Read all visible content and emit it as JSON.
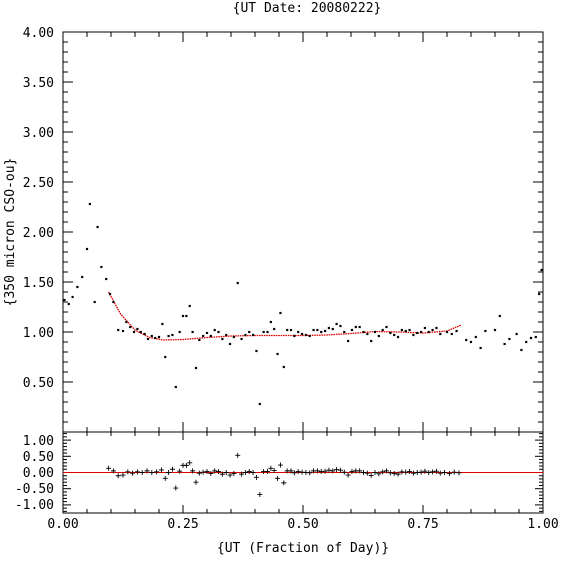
{
  "chart_data": {
    "type": "scatter",
    "title": "{UT Date: 20080222}",
    "xlabel": "{UT (Fraction of Day)}",
    "ylabel": "{350 micron CSO-ou}",
    "xlim": [
      0.0,
      1.0
    ],
    "x_ticks": [
      "0.00",
      "0.25",
      "0.50",
      "0.75",
      "1.00"
    ],
    "colors": {
      "data": "#000000",
      "fit": "#e00000",
      "zero_line": "#e00000"
    },
    "main_panel": {
      "ylim": [
        0.0,
        4.0
      ],
      "y_ticks": [
        "0.50",
        "1.00",
        "1.50",
        "2.00",
        "2.50",
        "3.00",
        "3.50",
        "4.00"
      ],
      "points": [
        [
          0.003,
          1.32
        ],
        [
          0.012,
          1.28
        ],
        [
          0.02,
          1.35
        ],
        [
          0.03,
          1.45
        ],
        [
          0.04,
          1.55
        ],
        [
          0.05,
          1.83
        ],
        [
          0.056,
          2.28
        ],
        [
          0.066,
          1.3
        ],
        [
          0.072,
          2.05
        ],
        [
          0.08,
          1.65
        ],
        [
          0.09,
          1.53
        ],
        [
          0.098,
          1.38
        ],
        [
          0.105,
          1.3
        ],
        [
          0.115,
          1.02
        ],
        [
          0.125,
          1.01
        ],
        [
          0.132,
          1.1
        ],
        [
          0.14,
          1.05
        ],
        [
          0.148,
          1.0
        ],
        [
          0.155,
          1.03
        ],
        [
          0.162,
          1.0
        ],
        [
          0.17,
          0.98
        ],
        [
          0.177,
          0.93
        ],
        [
          0.185,
          0.96
        ],
        [
          0.192,
          0.94
        ],
        [
          0.2,
          0.95
        ],
        [
          0.207,
          1.08
        ],
        [
          0.213,
          0.75
        ],
        [
          0.22,
          0.96
        ],
        [
          0.228,
          0.97
        ],
        [
          0.235,
          0.45
        ],
        [
          0.243,
          1.0
        ],
        [
          0.25,
          1.16
        ],
        [
          0.257,
          1.16
        ],
        [
          0.264,
          1.26
        ],
        [
          0.27,
          1.0
        ],
        [
          0.277,
          0.64
        ],
        [
          0.284,
          0.92
        ],
        [
          0.292,
          0.96
        ],
        [
          0.3,
          0.99
        ],
        [
          0.308,
          0.96
        ],
        [
          0.316,
          1.02
        ],
        [
          0.324,
          1.0
        ],
        [
          0.332,
          0.93
        ],
        [
          0.34,
          0.97
        ],
        [
          0.348,
          0.88
        ],
        [
          0.356,
          0.95
        ],
        [
          0.364,
          1.49
        ],
        [
          0.372,
          0.93
        ],
        [
          0.38,
          0.97
        ],
        [
          0.388,
          1.0
        ],
        [
          0.396,
          0.97
        ],
        [
          0.403,
          0.81
        ],
        [
          0.41,
          0.28
        ],
        [
          0.418,
          1.0
        ],
        [
          0.426,
          1.0
        ],
        [
          0.433,
          1.1
        ],
        [
          0.44,
          1.03
        ],
        [
          0.447,
          0.78
        ],
        [
          0.453,
          1.19
        ],
        [
          0.46,
          0.65
        ],
        [
          0.467,
          1.02
        ],
        [
          0.475,
          1.02
        ],
        [
          0.482,
          0.96
        ],
        [
          0.49,
          1.0
        ],
        [
          0.498,
          0.98
        ],
        [
          0.506,
          0.97
        ],
        [
          0.514,
          0.96
        ],
        [
          0.522,
          1.02
        ],
        [
          0.53,
          1.02
        ],
        [
          0.538,
          1.0
        ],
        [
          0.546,
          1.01
        ],
        [
          0.554,
          1.04
        ],
        [
          0.562,
          1.03
        ],
        [
          0.57,
          1.08
        ],
        [
          0.578,
          1.06
        ],
        [
          0.586,
          1.0
        ],
        [
          0.594,
          0.91
        ],
        [
          0.602,
          1.02
        ],
        [
          0.61,
          1.05
        ],
        [
          0.618,
          1.05
        ],
        [
          0.626,
          1.0
        ],
        [
          0.634,
          0.98
        ],
        [
          0.642,
          0.91
        ],
        [
          0.65,
          1.0
        ],
        [
          0.658,
          0.96
        ],
        [
          0.666,
          1.02
        ],
        [
          0.674,
          1.05
        ],
        [
          0.682,
          0.99
        ],
        [
          0.69,
          0.97
        ],
        [
          0.698,
          0.95
        ],
        [
          0.706,
          1.02
        ],
        [
          0.714,
          1.01
        ],
        [
          0.722,
          1.02
        ],
        [
          0.73,
          0.97
        ],
        [
          0.738,
          0.99
        ],
        [
          0.746,
          1.0
        ],
        [
          0.754,
          1.04
        ],
        [
          0.762,
          1.0
        ],
        [
          0.77,
          1.02
        ],
        [
          0.778,
          1.04
        ],
        [
          0.786,
          0.98
        ],
        [
          0.8,
          1.0
        ],
        [
          0.81,
          0.98
        ],
        [
          0.82,
          1.01
        ],
        [
          0.84,
          0.92
        ],
        [
          0.85,
          0.9
        ],
        [
          0.86,
          0.95
        ],
        [
          0.87,
          0.84
        ],
        [
          0.88,
          1.01
        ],
        [
          0.9,
          1.02
        ],
        [
          0.91,
          1.16
        ],
        [
          0.92,
          0.88
        ],
        [
          0.93,
          0.93
        ],
        [
          0.945,
          0.98
        ],
        [
          0.955,
          0.82
        ],
        [
          0.965,
          0.9
        ],
        [
          0.975,
          0.94
        ],
        [
          0.985,
          0.95
        ],
        [
          0.992,
          1.38
        ],
        [
          0.997,
          1.62
        ]
      ],
      "fit_curve": [
        [
          0.095,
          1.4
        ],
        [
          0.12,
          1.18
        ],
        [
          0.15,
          1.02
        ],
        [
          0.18,
          0.945
        ],
        [
          0.21,
          0.92
        ],
        [
          0.25,
          0.925
        ],
        [
          0.3,
          0.945
        ],
        [
          0.35,
          0.96
        ],
        [
          0.4,
          0.965
        ],
        [
          0.45,
          0.965
        ],
        [
          0.5,
          0.965
        ],
        [
          0.55,
          0.97
        ],
        [
          0.6,
          0.985
        ],
        [
          0.65,
          1.005
        ],
        [
          0.7,
          1.0
        ],
        [
          0.75,
          0.99
        ],
        [
          0.8,
          1.01
        ],
        [
          0.83,
          1.07
        ]
      ]
    },
    "residual_panel": {
      "ylim": [
        -1.25,
        1.25
      ],
      "y_ticks": [
        "-1.00",
        "-0.50",
        "0.00",
        "0.50",
        "1.00"
      ],
      "points": [
        [
          0.095,
          0.13
        ],
        [
          0.105,
          0.05
        ],
        [
          0.115,
          -0.1
        ],
        [
          0.125,
          -0.08
        ],
        [
          0.135,
          0.02
        ],
        [
          0.145,
          -0.02
        ],
        [
          0.155,
          0.02
        ],
        [
          0.165,
          0.0
        ],
        [
          0.175,
          0.05
        ],
        [
          0.185,
          0.0
        ],
        [
          0.195,
          0.02
        ],
        [
          0.205,
          0.08
        ],
        [
          0.213,
          -0.18
        ],
        [
          0.22,
          0.0
        ],
        [
          0.228,
          0.1
        ],
        [
          0.235,
          -0.48
        ],
        [
          0.243,
          0.04
        ],
        [
          0.25,
          0.22
        ],
        [
          0.257,
          0.22
        ],
        [
          0.264,
          0.3
        ],
        [
          0.27,
          0.05
        ],
        [
          0.277,
          -0.3
        ],
        [
          0.284,
          -0.02
        ],
        [
          0.292,
          0.01
        ],
        [
          0.3,
          0.03
        ],
        [
          0.308,
          -0.03
        ],
        [
          0.316,
          0.05
        ],
        [
          0.324,
          0.03
        ],
        [
          0.332,
          -0.05
        ],
        [
          0.34,
          0.0
        ],
        [
          0.348,
          -0.08
        ],
        [
          0.356,
          -0.03
        ],
        [
          0.364,
          0.53
        ],
        [
          0.372,
          -0.05
        ],
        [
          0.38,
          0.0
        ],
        [
          0.388,
          0.03
        ],
        [
          0.396,
          0.0
        ],
        [
          0.403,
          -0.15
        ],
        [
          0.41,
          -0.68
        ],
        [
          0.418,
          0.03
        ],
        [
          0.426,
          0.03
        ],
        [
          0.433,
          0.13
        ],
        [
          0.44,
          0.06
        ],
        [
          0.447,
          -0.18
        ],
        [
          0.453,
          0.23
        ],
        [
          0.46,
          -0.32
        ],
        [
          0.467,
          0.05
        ],
        [
          0.475,
          0.05
        ],
        [
          0.482,
          -0.01
        ],
        [
          0.49,
          0.03
        ],
        [
          0.498,
          0.01
        ],
        [
          0.506,
          0.0
        ],
        [
          0.514,
          -0.01
        ],
        [
          0.522,
          0.05
        ],
        [
          0.53,
          0.05
        ],
        [
          0.538,
          0.03
        ],
        [
          0.546,
          0.04
        ],
        [
          0.554,
          0.07
        ],
        [
          0.562,
          0.05
        ],
        [
          0.57,
          0.09
        ],
        [
          0.578,
          0.07
        ],
        [
          0.586,
          0.01
        ],
        [
          0.594,
          -0.08
        ],
        [
          0.602,
          0.03
        ],
        [
          0.61,
          0.05
        ],
        [
          0.618,
          0.05
        ],
        [
          0.626,
          0.0
        ],
        [
          0.634,
          -0.02
        ],
        [
          0.642,
          -0.09
        ],
        [
          0.65,
          0.0
        ],
        [
          0.658,
          -0.04
        ],
        [
          0.666,
          0.02
        ],
        [
          0.674,
          0.05
        ],
        [
          0.682,
          -0.01
        ],
        [
          0.69,
          -0.03
        ],
        [
          0.698,
          -0.05
        ],
        [
          0.706,
          0.02
        ],
        [
          0.714,
          0.01
        ],
        [
          0.722,
          0.03
        ],
        [
          0.73,
          -0.02
        ],
        [
          0.738,
          0.0
        ],
        [
          0.746,
          0.01
        ],
        [
          0.754,
          0.04
        ],
        [
          0.762,
          0.0
        ],
        [
          0.77,
          0.02
        ],
        [
          0.778,
          0.04
        ],
        [
          0.786,
          -0.02
        ],
        [
          0.795,
          0.0
        ],
        [
          0.805,
          -0.03
        ],
        [
          0.815,
          0.01
        ],
        [
          0.825,
          -0.01
        ]
      ]
    }
  }
}
